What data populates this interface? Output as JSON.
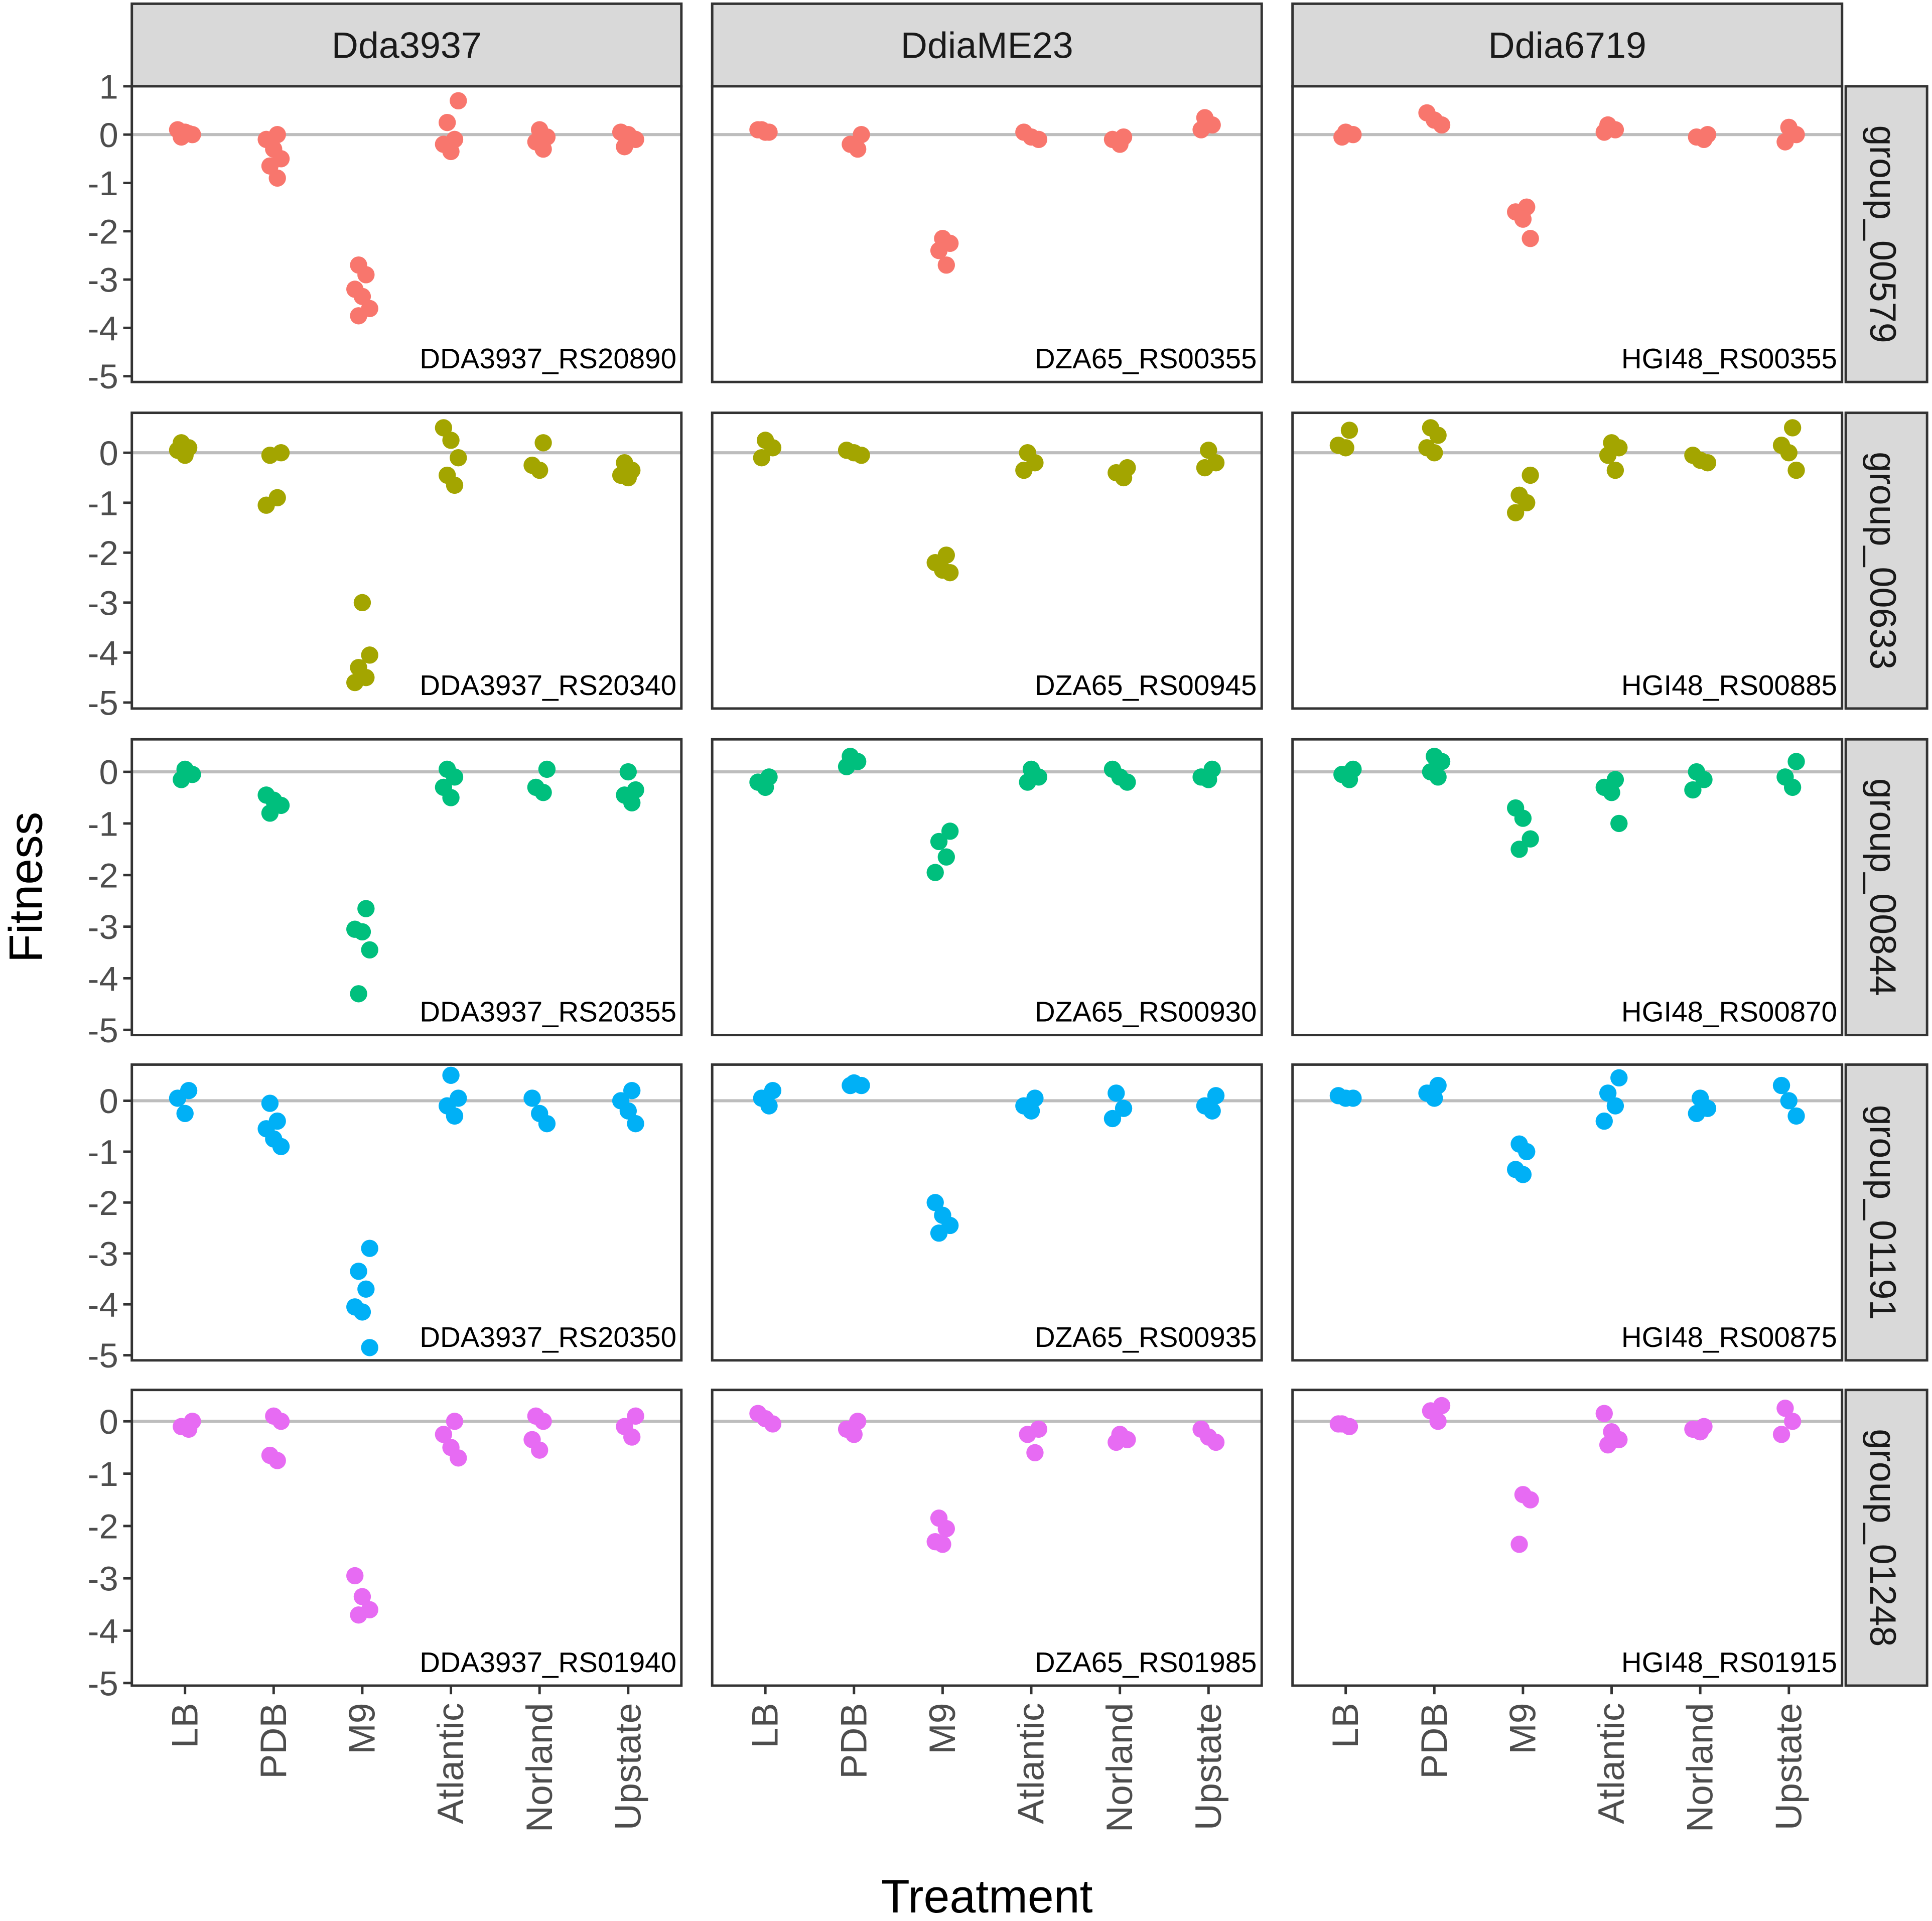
{
  "chart_data": {
    "type": "scatter",
    "xlabel": "Treatment",
    "ylabel": "Fitness",
    "columns": [
      "Dda3937",
      "DdiaME23",
      "Ddia6719"
    ],
    "rows": [
      "group_00579",
      "group_00633",
      "group_00844",
      "group_01191",
      "group_01248"
    ],
    "categories": [
      "LB",
      "PDB",
      "M9",
      "Atlantic",
      "Norland",
      "Upstate"
    ],
    "yticks": [
      1,
      0,
      -1,
      -2,
      -3,
      -4,
      -5
    ],
    "row_ylim": [
      [
        -5.12,
        1.0
      ],
      [
        -5.12,
        0.8
      ],
      [
        -5.1,
        0.63
      ],
      [
        -5.1,
        0.71
      ],
      [
        -5.05,
        0.6
      ]
    ],
    "row_colors": [
      "#F8766D",
      "#A3A500",
      "#00BF7D",
      "#00B0F6",
      "#E76BF3"
    ],
    "reference_line": 0,
    "panels": [
      [
        {
          "gene": "DDA3937_RS20890",
          "values": [
            [
              0.1,
              0.05,
              0,
              -0.05,
              0.02
            ],
            [
              0,
              -0.1,
              -0.3,
              -0.5,
              -0.65,
              -0.9
            ],
            [
              -2.7,
              -2.9,
              -3.2,
              -3.35,
              -3.6,
              -3.75
            ],
            [
              0.7,
              0.25,
              -0.1,
              -0.2,
              -0.35
            ],
            [
              0.1,
              -0.05,
              -0.15,
              -0.3
            ],
            [
              0.05,
              0,
              -0.1,
              -0.25
            ]
          ]
        },
        {
          "gene": "DZA65_RS00355",
          "values": [
            [
              0.1,
              0.05,
              0.1,
              0.05
            ],
            [
              0,
              -0.2,
              -0.3
            ],
            [
              -2.15,
              -2.25,
              -2.4,
              -2.7
            ],
            [
              0.05,
              -0.05,
              -0.1
            ],
            [
              -0.05,
              -0.1,
              -0.2
            ],
            [
              0.35,
              0.2,
              0.1
            ]
          ]
        },
        {
          "gene": "HGI48_RS00355",
          "values": [
            [
              0.05,
              0,
              -0.05
            ],
            [
              0.45,
              0.3,
              0.2
            ],
            [
              -1.5,
              -1.6,
              -1.75,
              -2.15
            ],
            [
              0.2,
              0.1,
              0.05
            ],
            [
              0,
              -0.05,
              -0.1
            ],
            [
              0.15,
              0,
              -0.15
            ]
          ]
        }
      ],
      [
        {
          "gene": "DDA3937_RS20340",
          "values": [
            [
              0.2,
              0.1,
              0.05,
              -0.05
            ],
            [
              0,
              -0.05,
              -0.9,
              -1.05
            ],
            [
              -3.0,
              -4.05,
              -4.3,
              -4.5,
              -4.6
            ],
            [
              0.5,
              0.25,
              -0.1,
              -0.45,
              -0.65
            ],
            [
              0.2,
              -0.25,
              -0.35
            ],
            [
              -0.2,
              -0.35,
              -0.45,
              -0.5
            ]
          ]
        },
        {
          "gene": "DZA65_RS00945",
          "values": [
            [
              0.25,
              0.1,
              -0.1
            ],
            [
              0.05,
              0,
              -0.05
            ],
            [
              -2.05,
              -2.2,
              -2.35,
              -2.4
            ],
            [
              0,
              -0.2,
              -0.35
            ],
            [
              -0.3,
              -0.4,
              -0.5
            ],
            [
              0.05,
              -0.2,
              -0.3
            ]
          ]
        },
        {
          "gene": "HGI48_RS00885",
          "values": [
            [
              0.45,
              0.15,
              0.1
            ],
            [
              0.5,
              0.35,
              0.1,
              0
            ],
            [
              -0.45,
              -0.85,
              -1.0,
              -1.2
            ],
            [
              0.2,
              0.1,
              -0.05,
              -0.35
            ],
            [
              -0.05,
              -0.15,
              -0.2
            ],
            [
              0.5,
              0.15,
              0,
              -0.35
            ]
          ]
        }
      ],
      [
        {
          "gene": "DDA3937_RS20355",
          "values": [
            [
              0.05,
              -0.05,
              -0.15
            ],
            [
              -0.45,
              -0.55,
              -0.65,
              -0.8
            ],
            [
              -2.65,
              -3.05,
              -3.1,
              -3.45,
              -4.3
            ],
            [
              0.05,
              -0.1,
              -0.3,
              -0.5
            ],
            [
              0.05,
              -0.3,
              -0.4
            ],
            [
              0,
              -0.35,
              -0.45,
              -0.6
            ]
          ]
        },
        {
          "gene": "DZA65_RS00930",
          "values": [
            [
              -0.1,
              -0.2,
              -0.3
            ],
            [
              0.3,
              0.2,
              0.1
            ],
            [
              -1.15,
              -1.35,
              -1.65,
              -1.95
            ],
            [
              0.05,
              -0.1,
              -0.2
            ],
            [
              0.05,
              -0.1,
              -0.2
            ],
            [
              0.05,
              -0.1,
              -0.15
            ]
          ]
        },
        {
          "gene": "HGI48_RS00870",
          "values": [
            [
              0.05,
              -0.05,
              -0.15
            ],
            [
              0.3,
              0.2,
              0,
              -0.1
            ],
            [
              -0.7,
              -0.9,
              -1.3,
              -1.5
            ],
            [
              -0.15,
              -0.3,
              -0.4,
              -1.0
            ],
            [
              0,
              -0.15,
              -0.35
            ],
            [
              0.2,
              -0.1,
              -0.3
            ]
          ]
        }
      ],
      [
        {
          "gene": "DDA3937_RS20350",
          "values": [
            [
              0.2,
              0.05,
              -0.25
            ],
            [
              -0.05,
              -0.4,
              -0.55,
              -0.75,
              -0.9
            ],
            [
              -2.9,
              -3.35,
              -3.7,
              -4.05,
              -4.15,
              -4.85
            ],
            [
              0.5,
              0.05,
              -0.1,
              -0.3
            ],
            [
              0.05,
              -0.25,
              -0.45
            ],
            [
              0.2,
              0,
              -0.2,
              -0.45
            ]
          ]
        },
        {
          "gene": "DZA65_RS00935",
          "values": [
            [
              0.2,
              0.05,
              -0.1
            ],
            [
              0.35,
              0.3,
              0.3
            ],
            [
              -2.0,
              -2.25,
              -2.45,
              -2.6
            ],
            [
              0.05,
              -0.1,
              -0.2
            ],
            [
              0.15,
              -0.15,
              -0.35
            ],
            [
              0.1,
              -0.1,
              -0.2
            ]
          ]
        },
        {
          "gene": "HGI48_RS00875",
          "values": [
            [
              0.1,
              0.05,
              0.05
            ],
            [
              0.3,
              0.15,
              0.05
            ],
            [
              -0.85,
              -1.0,
              -1.35,
              -1.45
            ],
            [
              0.45,
              0.15,
              -0.1,
              -0.4
            ],
            [
              0.05,
              -0.15,
              -0.25
            ],
            [
              0.3,
              0,
              -0.3
            ]
          ]
        }
      ],
      [
        {
          "gene": "DDA3937_RS01940",
          "values": [
            [
              0,
              -0.1,
              -0.15
            ],
            [
              0.1,
              0,
              -0.65,
              -0.75
            ],
            [
              -2.95,
              -3.35,
              -3.6,
              -3.7
            ],
            [
              0,
              -0.25,
              -0.5,
              -0.7
            ],
            [
              0.1,
              0,
              -0.35,
              -0.55
            ],
            [
              0.1,
              -0.1,
              -0.3
            ]
          ]
        },
        {
          "gene": "DZA65_RS01985",
          "values": [
            [
              0.15,
              0.05,
              -0.05
            ],
            [
              0,
              -0.15,
              -0.25
            ],
            [
              -1.85,
              -2.05,
              -2.3,
              -2.35
            ],
            [
              -0.15,
              -0.25,
              -0.6
            ],
            [
              -0.25,
              -0.35,
              -0.4
            ],
            [
              -0.15,
              -0.3,
              -0.4
            ]
          ]
        },
        {
          "gene": "HGI48_RS01915",
          "values": [
            [
              -0.05,
              -0.1,
              -0.05
            ],
            [
              0.3,
              0.2,
              0
            ],
            [
              -1.4,
              -1.5,
              -2.35
            ],
            [
              0.15,
              -0.2,
              -0.35,
              -0.45
            ],
            [
              -0.1,
              -0.15,
              -0.2
            ],
            [
              0.25,
              0,
              -0.25
            ]
          ]
        }
      ]
    ]
  }
}
